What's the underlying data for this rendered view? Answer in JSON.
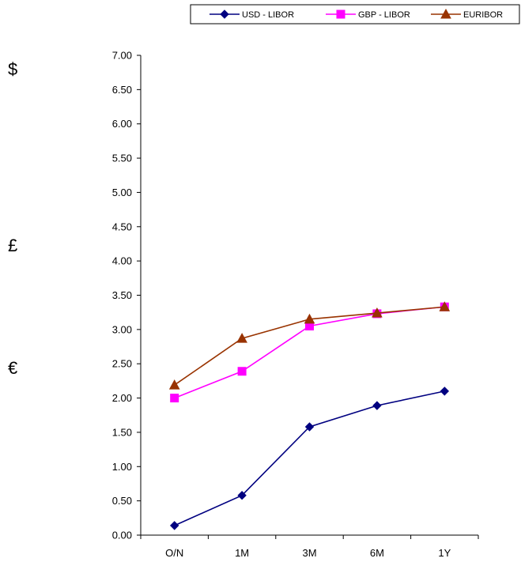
{
  "currency_symbols": {
    "usd": "$",
    "gbp": "£",
    "eur": "€"
  },
  "chart_data": {
    "type": "line",
    "title": "",
    "xlabel": "",
    "ylabel": "",
    "categories": [
      "O/N",
      "1M",
      "3M",
      "6M",
      "1Y"
    ],
    "ylim": [
      0,
      7
    ],
    "yticks": [
      "0.00",
      "0.50",
      "1.00",
      "1.50",
      "2.00",
      "2.50",
      "3.00",
      "3.50",
      "4.00",
      "4.50",
      "5.00",
      "5.50",
      "6.00",
      "6.50",
      "7.00"
    ],
    "grid": false,
    "legend_position": "top-right",
    "series": [
      {
        "name": "USD - LIBOR",
        "color": "#000080",
        "marker": "diamond",
        "values": [
          0.14,
          0.58,
          1.58,
          1.89,
          2.1
        ]
      },
      {
        "name": "GBP - LIBOR",
        "color": "#FF00FF",
        "marker": "square",
        "values": [
          2.0,
          2.39,
          3.05,
          3.23,
          3.33
        ]
      },
      {
        "name": "EURIBOR",
        "color": "#993300",
        "marker": "triangle",
        "values": [
          2.19,
          2.87,
          3.15,
          3.24,
          3.33
        ]
      }
    ]
  }
}
